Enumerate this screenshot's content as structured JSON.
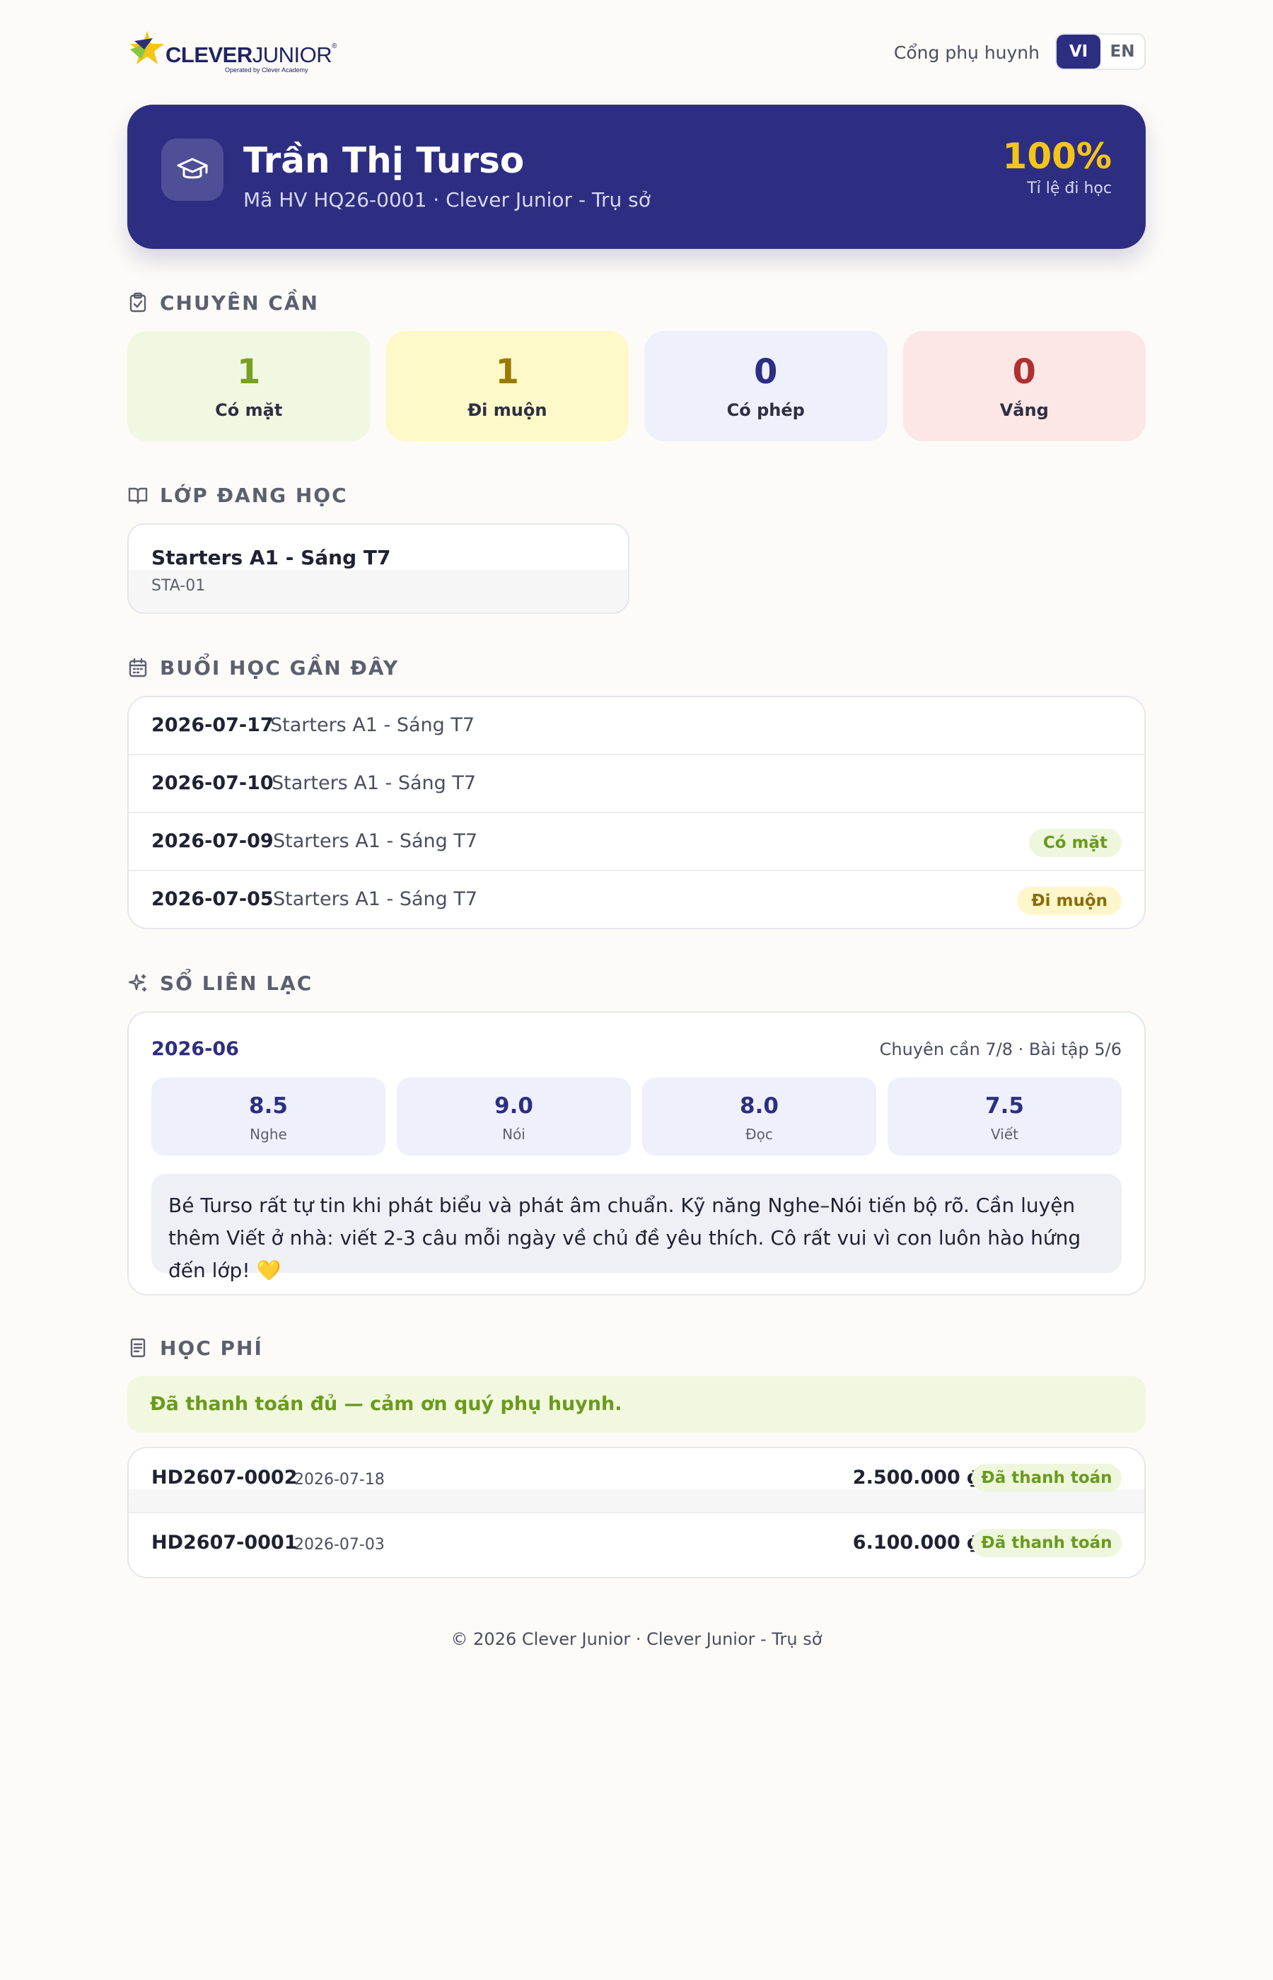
{
  "brand": {
    "name_bold": "CLEVER",
    "name_light": "JUNIOR",
    "registered": "®",
    "operated_by": "Operated by Clever Academy",
    "colors": {
      "primary": "#2d2e82",
      "accent_yellow": "#f5c518",
      "accent_green": "#8cc63f"
    }
  },
  "header": {
    "portal_label": "Cổng phụ huynh",
    "lang_vi": "VI",
    "lang_en": "EN"
  },
  "student": {
    "icon": "graduation-cap-icon",
    "name": "Trần Thị Turso",
    "meta": "Mã HV HQ26-0001 · Clever Junior - Trụ sở",
    "attendance_rate": "100%",
    "attendance_rate_label": "Tỉ lệ đi học"
  },
  "attendance": {
    "title": "CHUYÊN CẦN",
    "icon": "clipboard-check-icon",
    "stats": [
      {
        "value": "1",
        "label": "Có mặt",
        "color": "#78a022",
        "bg": "#f1f8e2"
      },
      {
        "value": "1",
        "label": "Đi muộn",
        "color": "#9a7a06",
        "bg": "#fff8c8"
      },
      {
        "value": "0",
        "label": "Có phép",
        "color": "#2d2e82",
        "bg": "#eef0fb"
      },
      {
        "value": "0",
        "label": "Vắng",
        "color": "#b03030",
        "bg": "#fce6e6"
      }
    ]
  },
  "current_class": {
    "title": "LỚP ĐANG HỌC",
    "icon": "open-book-icon",
    "name": "Starters A1 - Sáng T7",
    "code": "STA-01"
  },
  "recent_sessions": {
    "title": "BUỔI HỌC GẦN ĐÂY",
    "icon": "calendar-icon",
    "rows": [
      {
        "date": "2026-07-17",
        "class": "Starters A1 - Sáng T7",
        "status": ""
      },
      {
        "date": "2026-07-10",
        "class": "Starters A1 - Sáng T7",
        "status": ""
      },
      {
        "date": "2026-07-09",
        "class": "Starters A1 - Sáng T7",
        "status": "Có mặt"
      },
      {
        "date": "2026-07-05",
        "class": "Starters A1 - Sáng T7",
        "status": "Đi muộn"
      }
    ]
  },
  "report_book": {
    "title": "SỔ LIÊN LẠC",
    "icon": "sparkles-icon",
    "month": "2026-06",
    "summary": "Chuyên cần 7/8 · Bài tập 5/6",
    "scores": [
      {
        "value": "8.5",
        "skill": "Nghe"
      },
      {
        "value": "9.0",
        "skill": "Nói"
      },
      {
        "value": "8.0",
        "skill": "Đọc"
      },
      {
        "value": "7.5",
        "skill": "Viết"
      }
    ],
    "comment": "Bé Turso rất tự tin khi phát biểu và phát âm chuẩn. Kỹ năng Nghe–Nói tiến bộ rõ. Cần luyện thêm Viết ở nhà: viết 2-3 câu mỗi ngày về chủ đề yêu thích. Cô rất vui vì con luôn hào hứng đến lớp! 💛"
  },
  "tuition": {
    "title": "HỌC PHÍ",
    "icon": "receipt-icon",
    "paid_message": "Đã thanh toán đủ — cảm ơn quý phụ huynh.",
    "invoices": [
      {
        "code": "HD2607-0002",
        "date": "2026-07-18",
        "amount": "2.500.000 ₫",
        "status": "Đã thanh toán"
      },
      {
        "code": "HD2607-0001",
        "date": "2026-07-03",
        "amount": "6.100.000 ₫",
        "status": "Đã thanh toán"
      }
    ]
  },
  "footer": {
    "text": "© 2026 Clever Junior · Clever Junior - Trụ sở"
  }
}
